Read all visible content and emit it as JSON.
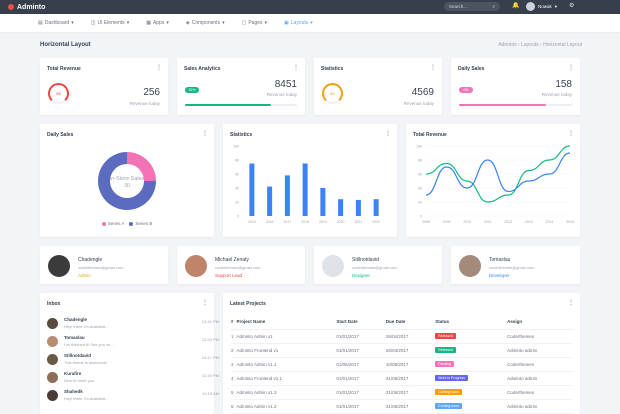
{
  "topbar": {
    "brand": "Adminto",
    "search_placeholder": "Search...",
    "user_name": "Nowak"
  },
  "nav": [
    {
      "label": "Dashboard",
      "icon": "dashboard-icon"
    },
    {
      "label": "UI Elements",
      "icon": "layers-icon"
    },
    {
      "label": "Apps",
      "icon": "apps-icon"
    },
    {
      "label": "Components",
      "icon": "components-icon"
    },
    {
      "label": "Pages",
      "icon": "pages-icon"
    },
    {
      "label": "Layouts",
      "icon": "layouts-icon"
    }
  ],
  "page": {
    "title": "Horizontal Layout",
    "breadcrumb": [
      "Adminto",
      "Layouts",
      "Horizontal Layout"
    ]
  },
  "stats": [
    {
      "title": "Total Revenue",
      "value": "256",
      "sub": "Revenue today",
      "ring": "58"
    },
    {
      "title": "Sales Analytics",
      "value": "8451",
      "sub": "Revenue today",
      "badge": "32%",
      "progress": 0.77
    },
    {
      "title": "Statistics",
      "value": "4569",
      "sub": "Revenue today",
      "ring": "80"
    },
    {
      "title": "Daily Sales",
      "value": "158",
      "sub": "Revenue today",
      "badge": "0%",
      "progress": 0.77
    }
  ],
  "daily_sales": {
    "title": "Daily Sales",
    "center_label": "In-Store Sales",
    "center_value": "30",
    "legend": [
      "Series A",
      "Series B"
    ]
  },
  "statistics": {
    "title": "Statistics"
  },
  "total_revenue": {
    "title": "Total Revenue"
  },
  "chart_data": [
    {
      "type": "pie",
      "title": "Daily Sales",
      "categories": [
        "Series A",
        "Series B"
      ],
      "values": [
        25,
        75
      ],
      "colors": [
        "#f472b6",
        "#5b6bbf"
      ]
    },
    {
      "type": "bar",
      "title": "Statistics",
      "categories": [
        "2015",
        "2016",
        "2017",
        "2018",
        "2019",
        "2020",
        "2021",
        "2022"
      ],
      "values": [
        75,
        42,
        58,
        75,
        40,
        24,
        23,
        24
      ],
      "ylim": [
        0,
        100
      ],
      "yticks": [
        "0",
        "20",
        "40",
        "60",
        "80",
        "100"
      ]
    },
    {
      "type": "line",
      "title": "Total Revenue",
      "categories": [
        "2008",
        "2009",
        "2010",
        "2011",
        "2012",
        "2013",
        "2014",
        "2015"
      ],
      "series": [
        {
          "values": [
            60,
            75,
            50,
            20,
            30,
            65,
            80,
            100
          ]
        },
        {
          "values": [
            30,
            70,
            40,
            80,
            35,
            50,
            60,
            90
          ]
        }
      ],
      "ylim": [
        0,
        100
      ],
      "yticks": [
        "0",
        "20",
        "40",
        "60",
        "80",
        "100"
      ]
    }
  ],
  "people": [
    {
      "name": "Chadengle",
      "email": "coderthemes@gmail.com",
      "role": "Admin",
      "role_color": "#f59e0b",
      "avatar": "#3b3b3b"
    },
    {
      "name": "Michael Zenaty",
      "email": "coderthemes@gmail.com",
      "role": "Support Lead",
      "role_color": "#ef4444",
      "avatar": "#c0846a"
    },
    {
      "name": "Stillnotdavid",
      "email": "coderthemes@gmail.com",
      "role": "Designer",
      "role_color": "#10b981",
      "avatar": "#dfe3e8"
    },
    {
      "name": "Tomaslau",
      "email": "coderthemes@gmail.com",
      "role": "Developer",
      "role_color": "#3b82f6",
      "avatar": "#a38a7a"
    }
  ],
  "inbox": {
    "title": "Inbox",
    "items": [
      {
        "name": "Chadengle",
        "msg": "Hey! there I'm available...",
        "time": "13:40 PM",
        "avatar": "#5a4a3f"
      },
      {
        "name": "Tomaslau",
        "msg": "I've finished it! See you so...",
        "time": "13:34 PM",
        "avatar": "#b88d72"
      },
      {
        "name": "Stillnotdavid",
        "msg": "This theme is awesome!",
        "time": "13:17 PM",
        "avatar": "#6b5847"
      },
      {
        "name": "Kurafire",
        "msg": "Nice to meet you",
        "time": "12:20 PM",
        "avatar": "#8d6e5a"
      },
      {
        "name": "Shahedk",
        "msg": "Hey! there I'm available...",
        "time": "10:15 AM",
        "avatar": "#4a3d35"
      }
    ]
  },
  "projects": {
    "title": "Latest Projects",
    "headers": [
      "#",
      "Project Name",
      "Start Date",
      "Due Date",
      "Status",
      "Assign"
    ],
    "rows": [
      {
        "id": "1",
        "name": "Adminto Admin v1",
        "start": "01/01/2017",
        "due": "26/04/2017",
        "status": "Released",
        "color": "#ef4444",
        "assign": "Coderthemes"
      },
      {
        "id": "2",
        "name": "Adminto Frontend v1",
        "start": "01/01/2017",
        "due": "26/04/2017",
        "status": "Released",
        "color": "#10b981",
        "assign": "Adminto admin"
      },
      {
        "id": "3",
        "name": "Adminto Admin v1.1",
        "start": "01/05/2017",
        "due": "10/05/2017",
        "status": "Pending",
        "color": "#f472b6",
        "assign": "Coderthemes"
      },
      {
        "id": "4",
        "name": "Adminto Frontend v1.1",
        "start": "01/01/2017",
        "due": "31/05/2017",
        "status": "Work in Progress",
        "color": "#6366f1",
        "assign": "Adminto admin"
      },
      {
        "id": "5",
        "name": "Adminto Admin v1.3",
        "start": "01/01/2017",
        "due": "31/05/2017",
        "status": "Coming soon",
        "color": "#f59e0b",
        "assign": "Coderthemes"
      },
      {
        "id": "6",
        "name": "Adminto Admin v1.3",
        "start": "01/01/2017",
        "due": "31/05/2017",
        "status": "Coming soon",
        "color": "#60a5fa",
        "assign": "Adminto admin"
      }
    ]
  }
}
